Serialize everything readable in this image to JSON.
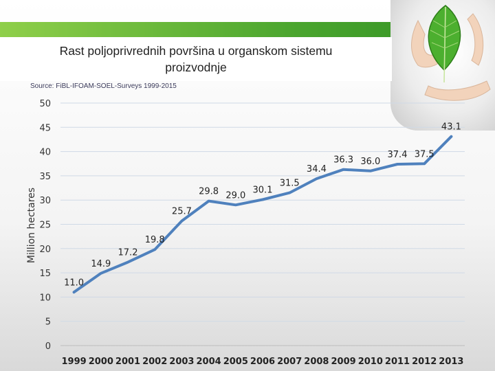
{
  "title": "Rast poljoprivrednih površina u organskom sistemu proizvodnje",
  "source": "Source: FiBL-IFOAM-SOEL-Surveys 1999-2015",
  "chart_data": {
    "type": "line",
    "title": "Rast poljoprivrednih površina u organskom sistemu proizvodnje",
    "xlabel": "",
    "ylabel": "Million hectares",
    "categories": [
      "1999",
      "2000",
      "2001",
      "2002",
      "2003",
      "2004",
      "2005",
      "2006",
      "2007",
      "2008",
      "2009",
      "2010",
      "2011",
      "2012",
      "2013"
    ],
    "series": [
      {
        "values": [
          11.0,
          14.9,
          17.2,
          19.8,
          25.7,
          29.8,
          29.0,
          30.1,
          31.5,
          34.4,
          36.3,
          36.0,
          37.4,
          37.5,
          43.1
        ]
      }
    ],
    "data_labels": [
      "11.0",
      "14.9",
      "17.2",
      "19.8",
      "25.7",
      "29.8",
      "29.0",
      "30.1",
      "31.5",
      "34.4",
      "36.3",
      "36.0",
      "37.4",
      "37.5",
      "43.1"
    ],
    "y_ticks": [
      "0",
      "5",
      "10",
      "15",
      "20",
      "25",
      "30",
      "35",
      "40",
      "45",
      "50"
    ],
    "ylim": [
      0,
      50
    ],
    "grid": true,
    "legend": "none",
    "line_color": "#4f81bd"
  },
  "decoration": {
    "right-image": "leaf-in-hands"
  }
}
